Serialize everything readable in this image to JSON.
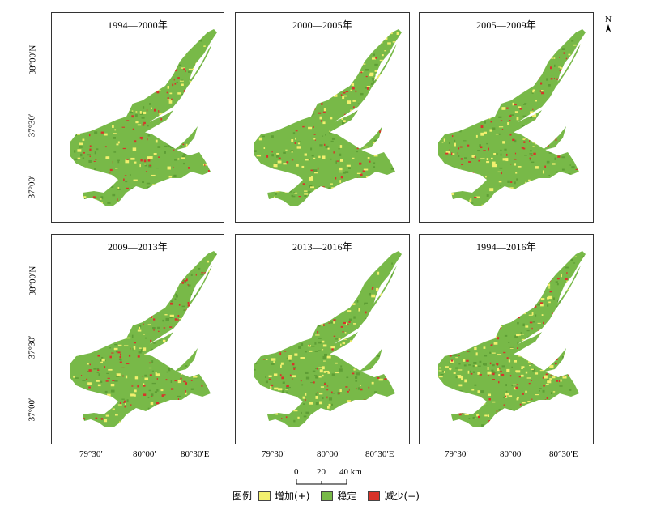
{
  "panels": [
    {
      "title": "1994—2000年",
      "red_density": 0.55,
      "yellow_density": 0.55
    },
    {
      "title": "2000—2005年",
      "red_density": 0.45,
      "yellow_density": 0.6
    },
    {
      "title": "2005—2009年",
      "red_density": 0.55,
      "yellow_density": 0.55
    },
    {
      "title": "2009—2013年",
      "red_density": 0.85,
      "yellow_density": 0.4
    },
    {
      "title": "2013—2016年",
      "red_density": 0.5,
      "yellow_density": 0.55
    },
    {
      "title": "1994—2016年",
      "red_density": 0.7,
      "yellow_density": 0.75
    }
  ],
  "lat_labels": [
    "38°00′N",
    "37°30′",
    "37°00′"
  ],
  "lon_labels": [
    "79°30′",
    "80°00′",
    "80°30′E"
  ],
  "north": "N",
  "scale": {
    "ticks": [
      "0",
      "20",
      "40 km"
    ]
  },
  "legend": {
    "title": "图例",
    "items": [
      {
        "label": "增加(+)",
        "color": "#f2ef6e"
      },
      {
        "label": "稳定",
        "color": "#78b948"
      },
      {
        "label": "减少(−)",
        "color": "#d8332a"
      }
    ]
  },
  "colors": {
    "stable": "#78b948",
    "increase": "#f2ef6e",
    "decrease": "#d8332a",
    "stable_dark": "#5e9e35"
  }
}
